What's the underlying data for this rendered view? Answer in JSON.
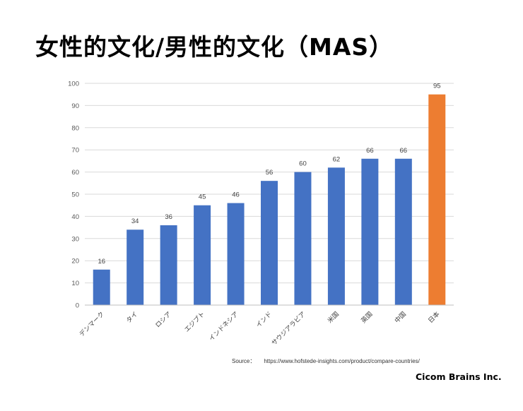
{
  "title": "女性的文化/男性的文化（MAS）",
  "source": {
    "label": "Source：",
    "url": "https://www.hofstede-insights.com/product/compare-countries/"
  },
  "company": "Cicom Brains Inc.",
  "colors": {
    "bar": "#4472C4",
    "highlight": "#ED7D31",
    "grid": "#D9D9D9"
  },
  "chart_data": {
    "type": "bar",
    "categories": [
      "デンマーク",
      "タイ",
      "ロシア",
      "エジプト",
      "インドネシア",
      "インド",
      "サウジアラビア",
      "米国",
      "英国",
      "中国",
      "日本"
    ],
    "values": [
      16,
      34,
      36,
      45,
      46,
      56,
      60,
      62,
      66,
      66,
      95
    ],
    "highlight_index": 10,
    "ylim": [
      0,
      100
    ],
    "yticks": [
      0,
      10,
      20,
      30,
      40,
      50,
      60,
      70,
      80,
      90,
      100
    ],
    "grid": true,
    "data_labels": true
  }
}
